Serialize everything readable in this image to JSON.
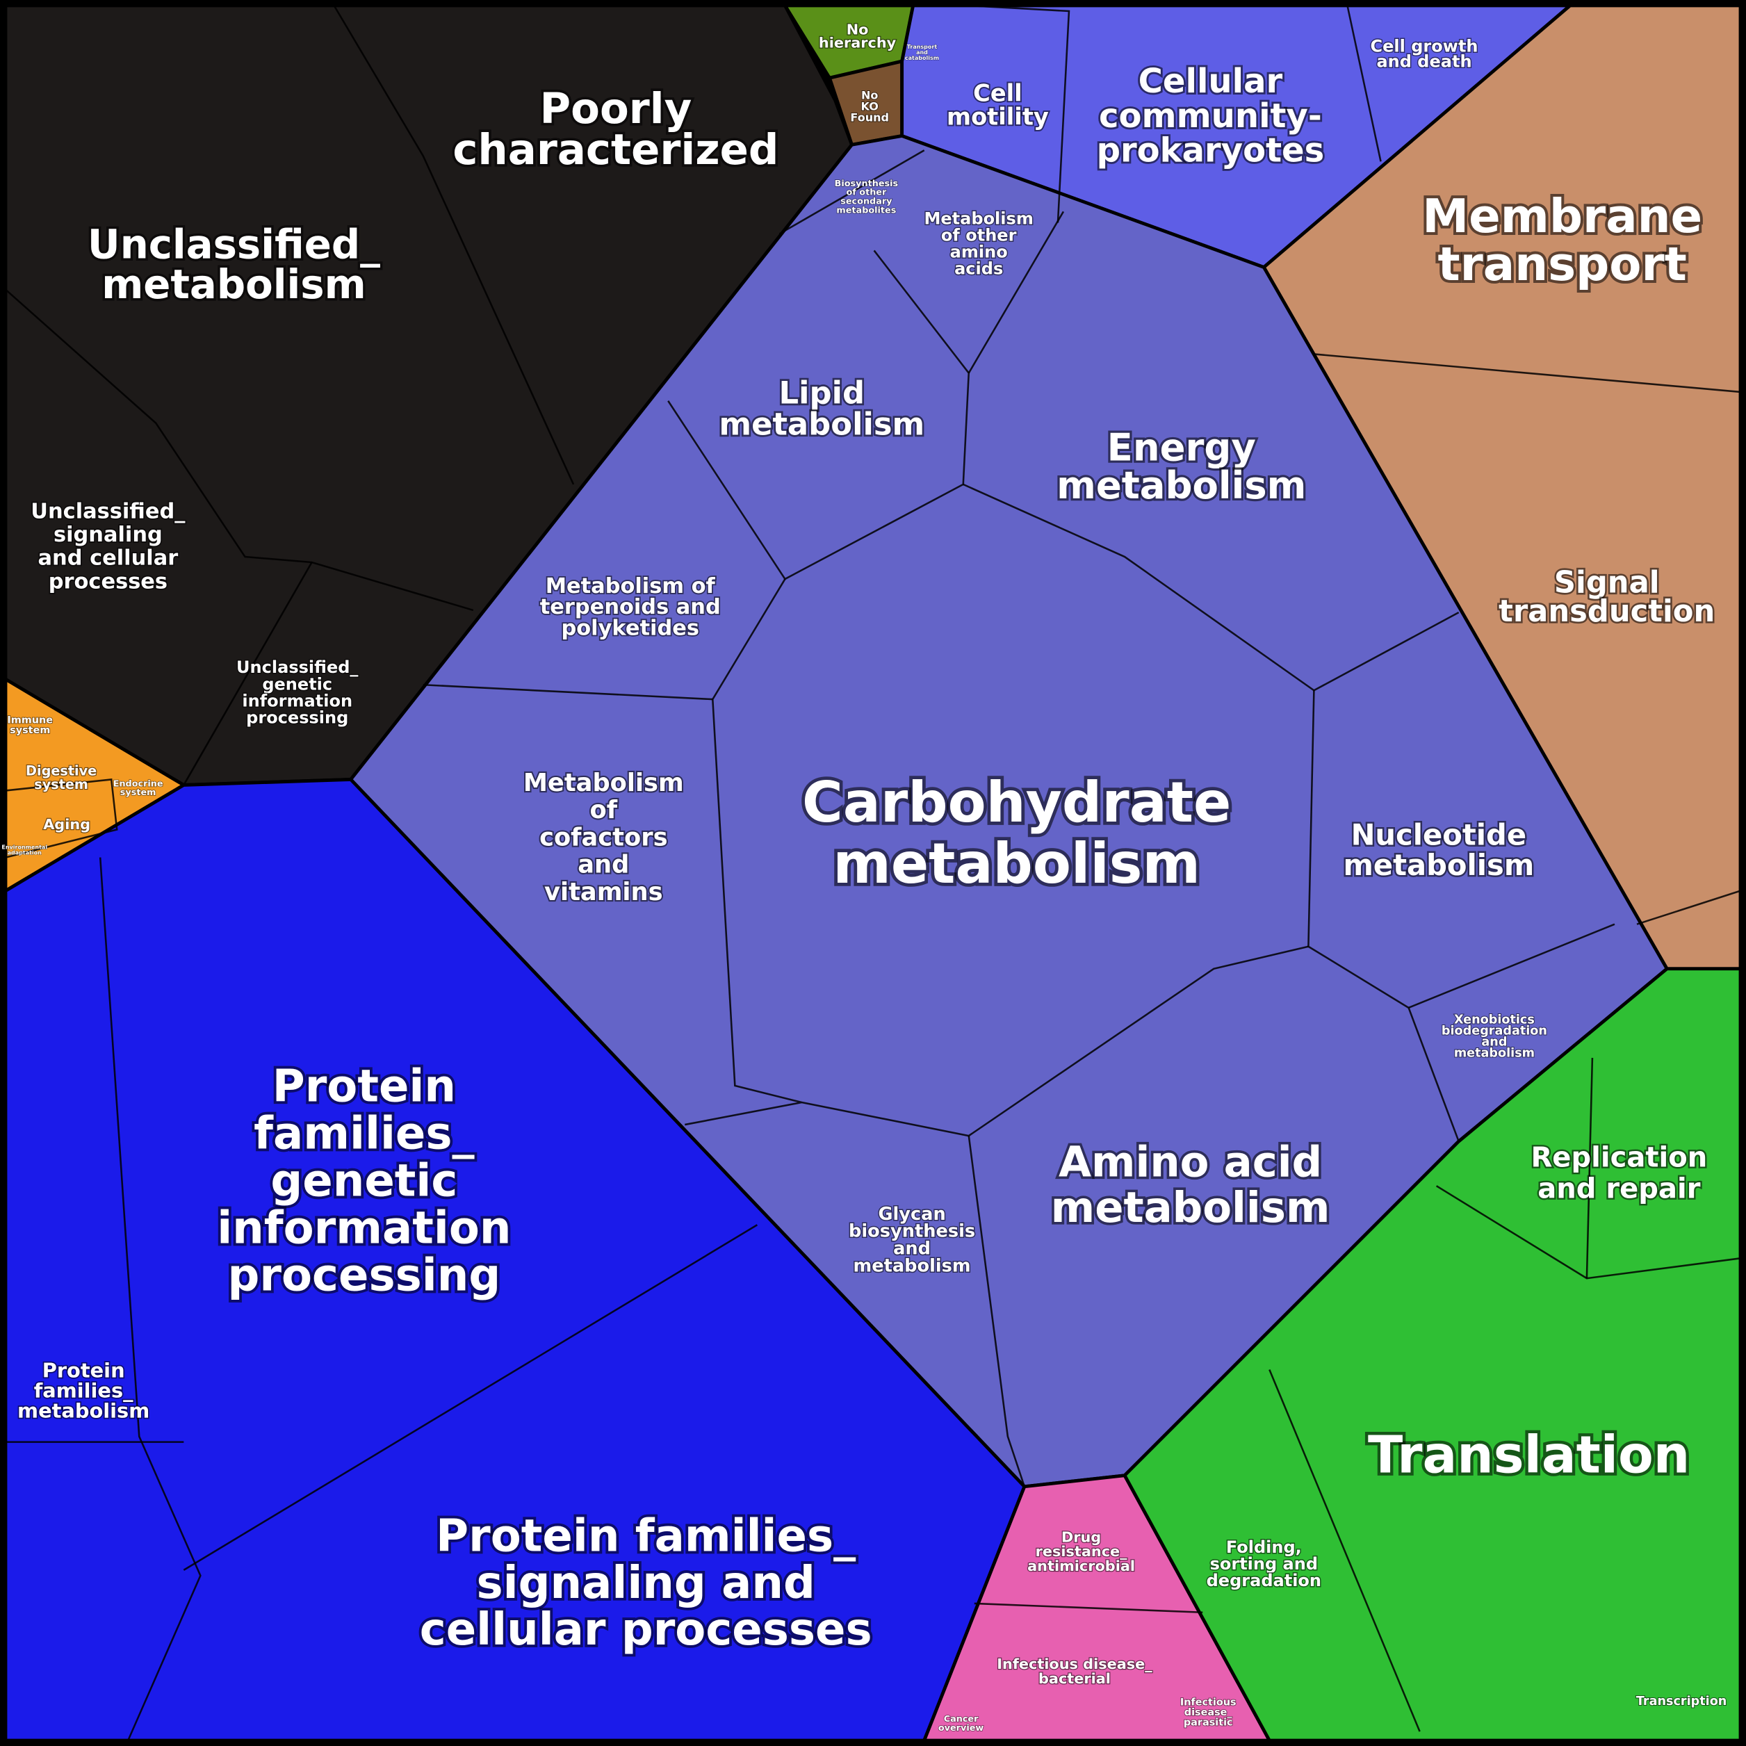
{
  "labels": [
    {
      "lines": [
        "Poorly",
        "characterized"
      ]
    },
    {
      "lines": [
        "Unclassified_",
        "metabolism"
      ]
    },
    {
      "lines": [
        "Unclassified_",
        "signaling",
        "and cellular",
        "processes"
      ]
    },
    {
      "lines": [
        "Unclassified_",
        "genetic",
        "information",
        "processing"
      ]
    },
    {
      "lines": [
        "Immune",
        "system"
      ]
    },
    {
      "lines": [
        "Digestive",
        "system"
      ]
    },
    {
      "lines": [
        "Endocrine",
        "system"
      ]
    },
    {
      "lines": [
        "Aging"
      ]
    },
    {
      "lines": [
        "Environmental",
        "adaptation"
      ]
    },
    {
      "lines": [
        "No",
        "hierarchy"
      ]
    },
    {
      "lines": [
        "No",
        "KO",
        "Found"
      ]
    },
    {
      "lines": [
        "Transport",
        "and",
        "catabolism"
      ]
    },
    {
      "lines": [
        "Cell",
        "motility"
      ]
    },
    {
      "lines": [
        "Cellular",
        "community-",
        "prokaryotes"
      ]
    },
    {
      "lines": [
        "Cell growth",
        "and death"
      ]
    },
    {
      "lines": [
        "Membrane",
        "transport"
      ]
    },
    {
      "lines": [
        "Signal",
        "transduction"
      ]
    },
    {
      "lines": [
        "Biosynthesis",
        "of other",
        "secondary",
        "metabolites"
      ]
    },
    {
      "lines": [
        "Metabolism",
        "of other",
        "amino",
        "acids"
      ]
    },
    {
      "lines": [
        "Lipid",
        "metabolism"
      ]
    },
    {
      "lines": [
        "Energy",
        "metabolism"
      ]
    },
    {
      "lines": [
        "Metabolism of",
        "terpenoids and",
        "polyketides"
      ]
    },
    {
      "lines": [
        "Metabolism",
        "of",
        "cofactors",
        "and",
        "vitamins"
      ]
    },
    {
      "lines": [
        "Carbohydrate",
        "metabolism"
      ]
    },
    {
      "lines": [
        "Nucleotide",
        "metabolism"
      ]
    },
    {
      "lines": [
        "Xenobiotics",
        "biodegradation",
        "and",
        "metabolism"
      ]
    },
    {
      "lines": [
        "Glycan",
        "biosynthesis",
        "and",
        "metabolism"
      ]
    },
    {
      "lines": [
        "Amino acid",
        "metabolism"
      ]
    },
    {
      "lines": [
        "Protein",
        "families_",
        "genetic",
        "information",
        "processing"
      ]
    },
    {
      "lines": [
        "Protein",
        "families_",
        "metabolism"
      ]
    },
    {
      "lines": [
        "Protein families_",
        "signaling and",
        "cellular processes"
      ]
    },
    {
      "lines": [
        "Drug",
        "resistance_",
        "antimicrobial"
      ]
    },
    {
      "lines": [
        "Infectious disease_",
        "bacterial"
      ]
    },
    {
      "lines": [
        "Cancer",
        "overview"
      ]
    },
    {
      "lines": [
        "Infectious",
        "disease_",
        "parasitic"
      ]
    },
    {
      "lines": [
        "Replication",
        "and repair"
      ]
    },
    {
      "lines": [
        "Translation"
      ]
    },
    {
      "lines": [
        "Folding,",
        "sorting and",
        "degradation"
      ]
    },
    {
      "lines": [
        "Transcription"
      ]
    }
  ]
}
